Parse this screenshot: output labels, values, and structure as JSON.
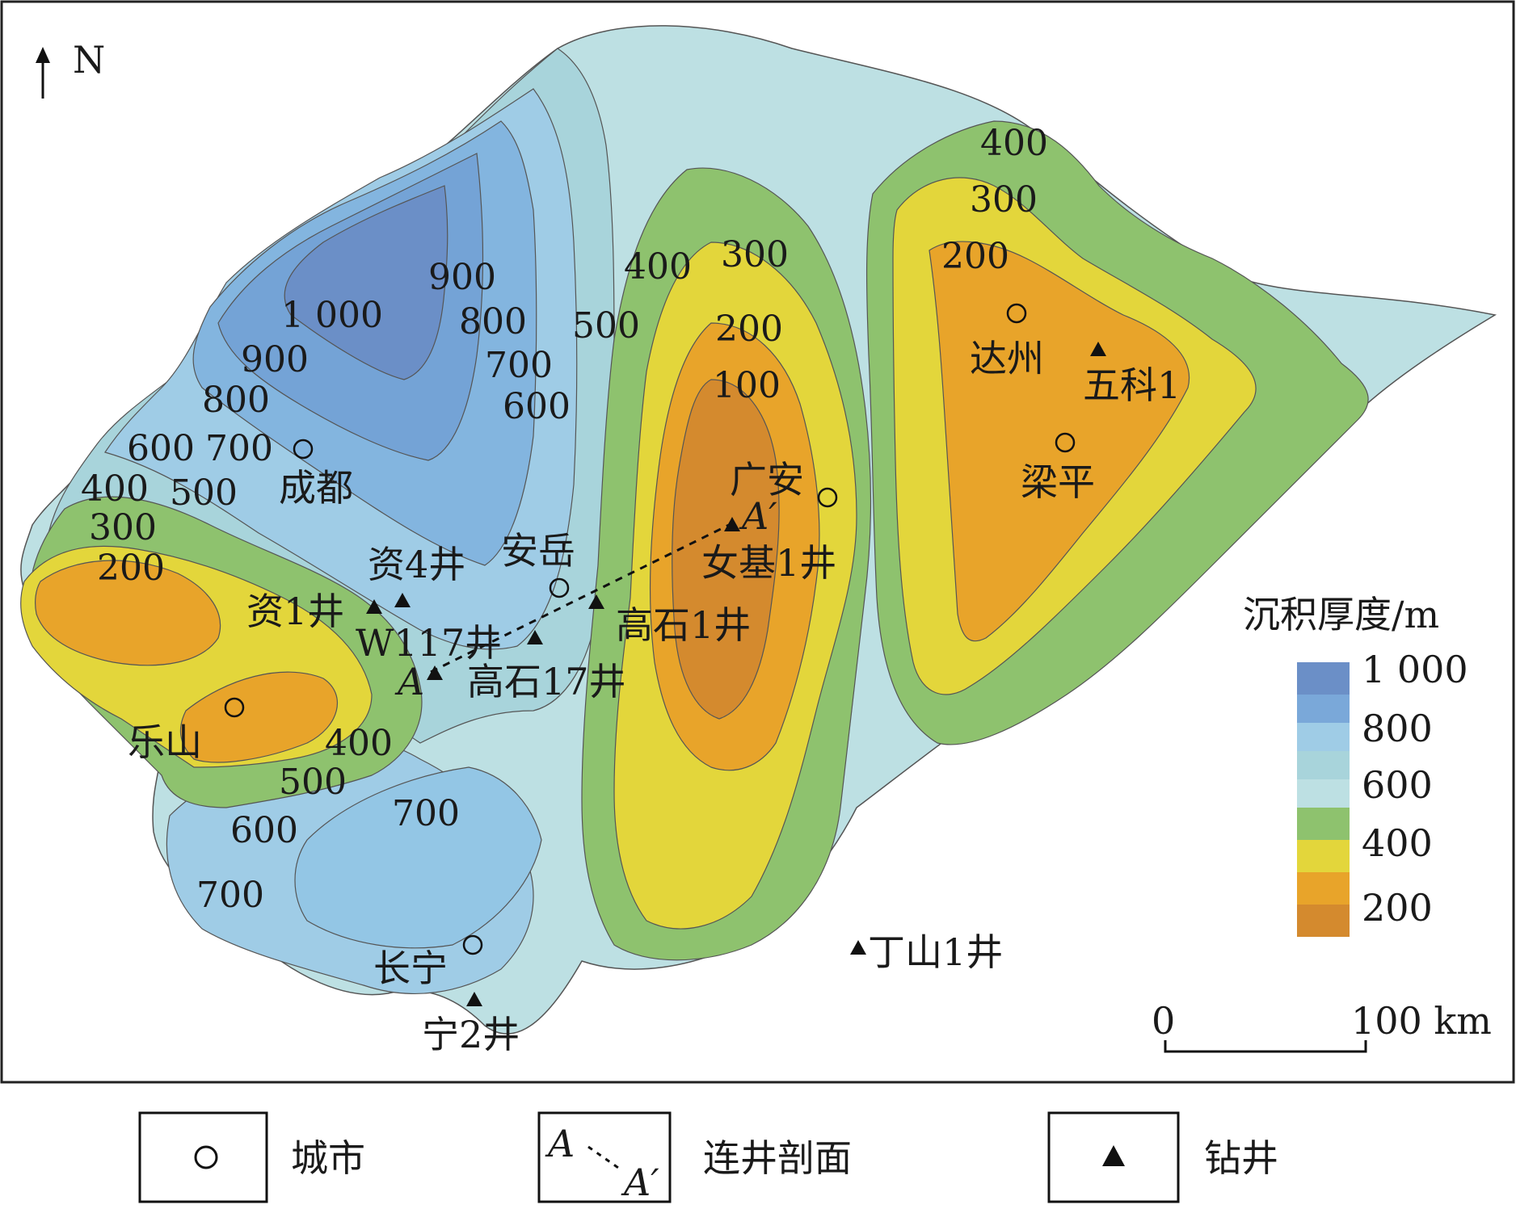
{
  "north_label": "N",
  "contour_labels": {
    "nw_1000": "1 000",
    "nw_900a": "900",
    "nw_900b": "900",
    "nw_800a": "800",
    "nw_800b": "800",
    "nw_700a": "700",
    "nw_700b": "700",
    "nw_600a": "600",
    "nw_600b": "600",
    "nw_500a": "500",
    "nw_500b": "500",
    "nw_400a": "400",
    "nw_400b": "400",
    "w_300": "300",
    "w_200": "200",
    "s_400": "400",
    "s_500": "500",
    "s_600": "600",
    "s_700a": "700",
    "s_700b": "700",
    "c_300": "300",
    "c_200": "200",
    "c_100": "100",
    "e_400": "400",
    "e_300": "300",
    "e_200": "200"
  },
  "cities": {
    "chengdu": "成都",
    "anyue": "安岳",
    "guangan": "广安",
    "dazhou": "达州",
    "liangping": "梁平",
    "leshan": "乐山",
    "changning": "长宁"
  },
  "wells": {
    "zi4": "资4井",
    "zi1": "资1井",
    "w117": "W117井",
    "gaoshi17": "高石17井",
    "gaoshi1": "高石1井",
    "nvji1": "女基1井",
    "wuke1": "五科1",
    "dingshan1": "丁山1井",
    "ning2": "宁2井"
  },
  "section_labels": {
    "start": "A",
    "end": "A′"
  },
  "legend": {
    "title": "沉积厚度/m",
    "ticks": [
      "1 000",
      "800",
      "600",
      "400",
      "200"
    ],
    "colors": [
      "#6b8fc7",
      "#7aa8d9",
      "#9fcce6",
      "#a8d4db",
      "#bde0e3",
      "#8ec26e",
      "#e3d63b",
      "#e8a42a",
      "#d48a2e"
    ]
  },
  "scale_bar": {
    "start": "0",
    "end": "100 km"
  },
  "symbol_key": {
    "city": "城市",
    "section": "连井剖面",
    "well": "钻井",
    "section_start": "A",
    "section_end": "A′"
  },
  "colors": {
    "t1000": "#6b8fc7",
    "t900": "#74a3d6",
    "t800": "#83b5df",
    "t700": "#93c6e5",
    "t600": "#a5d2e2",
    "t500": "#b7dde2",
    "t400": "#8ec26e",
    "t300": "#e3d63b",
    "t200": "#e8a42a",
    "t100": "#d48a2e"
  }
}
